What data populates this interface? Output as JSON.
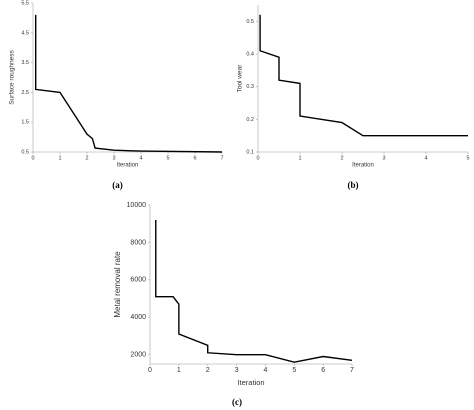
{
  "chart_data": [
    {
      "type": "line",
      "caption": "(a)",
      "x_label": "Iteration",
      "y_label": "Surface roughness",
      "x": [
        0.1,
        0.1,
        1,
        2,
        2.2,
        2.3,
        3,
        4,
        7
      ],
      "values": [
        5.1,
        2.6,
        2.5,
        1.1,
        0.95,
        0.63,
        0.56,
        0.53,
        0.5
      ],
      "color": "#000000",
      "xlim": [
        0,
        7
      ],
      "xticks": [
        0,
        1,
        2,
        3,
        4,
        5,
        6,
        7
      ],
      "ylim": [
        0.5,
        5.5
      ],
      "yticks": [
        0.5,
        1.5,
        2.5,
        3.5,
        4.5,
        5.5
      ]
    },
    {
      "type": "line",
      "caption": "(b)",
      "x_label": "Iteration",
      "y_label": "Tool wear",
      "x": [
        0.05,
        0.05,
        0.5,
        0.5,
        1,
        1,
        2,
        2.5,
        5
      ],
      "values": [
        0.52,
        0.41,
        0.39,
        0.32,
        0.31,
        0.21,
        0.19,
        0.15,
        0.15
      ],
      "color": "#000000",
      "xlim": [
        0,
        5
      ],
      "xticks": [
        0,
        1,
        2,
        3,
        4,
        5
      ],
      "ylim": [
        0.1,
        0.55
      ],
      "yticks": [
        0.1,
        0.2,
        0.3,
        0.4,
        0.5
      ]
    },
    {
      "type": "line",
      "caption": "(c)",
      "x_label": "Iteration",
      "y_label": "Metal removal rate",
      "x": [
        0.2,
        0.2,
        0.8,
        1,
        1,
        2,
        2,
        3,
        4,
        5,
        6,
        7
      ],
      "values": [
        9200,
        5100,
        5100,
        4700,
        3100,
        2500,
        2100,
        2000,
        2000,
        1600,
        1900,
        1700
      ],
      "color": "#000000",
      "xlim": [
        0,
        7
      ],
      "xticks": [
        0,
        1,
        2,
        3,
        4,
        5,
        6,
        7
      ],
      "ylim": [
        1500,
        10000
      ],
      "yticks": [
        2000,
        4000,
        6000,
        8000,
        10000
      ]
    }
  ]
}
